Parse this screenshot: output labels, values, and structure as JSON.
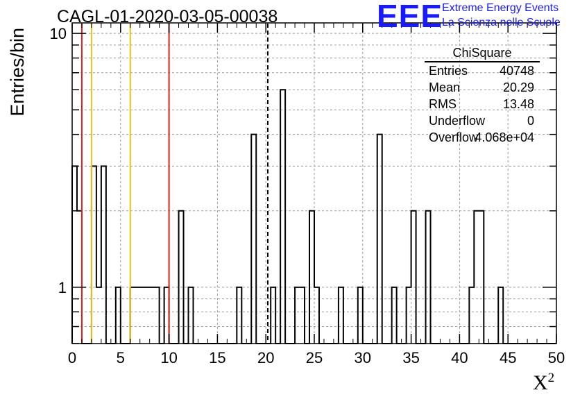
{
  "chart_data": {
    "type": "histogram",
    "title": "CAGL-01-2020-03-05-00038",
    "xlabel_base": "X",
    "xlabel_sup": "2",
    "ylabel": "Entries/bin",
    "xlim": [
      0,
      50
    ],
    "ylim_log": [
      0.6,
      11
    ],
    "y_scale": "log",
    "grid": true,
    "bin_width": 0.5,
    "x_ticks": [
      0,
      5,
      10,
      15,
      20,
      25,
      30,
      35,
      40,
      45,
      50
    ],
    "y_ticks": [
      {
        "value": 1,
        "label": "1"
      },
      {
        "value": 10,
        "label": "10"
      }
    ],
    "bins": [
      {
        "x": 0.0,
        "y": 3
      },
      {
        "x": 0.5,
        "y": 2
      },
      {
        "x": 2.0,
        "y": 3
      },
      {
        "x": 2.5,
        "y": 1
      },
      {
        "x": 3.0,
        "y": 3
      },
      {
        "x": 4.5,
        "y": 1
      },
      {
        "x": 6.0,
        "y": 1
      },
      {
        "x": 6.5,
        "y": 1
      },
      {
        "x": 7.0,
        "y": 1
      },
      {
        "x": 7.5,
        "y": 1
      },
      {
        "x": 8.0,
        "y": 1
      },
      {
        "x": 8.5,
        "y": 1
      },
      {
        "x": 9.5,
        "y": 1
      },
      {
        "x": 11.0,
        "y": 2
      },
      {
        "x": 12.0,
        "y": 1
      },
      {
        "x": 17.0,
        "y": 1
      },
      {
        "x": 18.5,
        "y": 4
      },
      {
        "x": 20.5,
        "y": 1
      },
      {
        "x": 21.5,
        "y": 6
      },
      {
        "x": 23.0,
        "y": 1
      },
      {
        "x": 23.5,
        "y": 1
      },
      {
        "x": 24.5,
        "y": 2
      },
      {
        "x": 25.0,
        "y": 1
      },
      {
        "x": 27.5,
        "y": 1
      },
      {
        "x": 29.5,
        "y": 1
      },
      {
        "x": 31.5,
        "y": 4
      },
      {
        "x": 33.0,
        "y": 1
      },
      {
        "x": 34.5,
        "y": 1
      },
      {
        "x": 35.0,
        "y": 2
      },
      {
        "x": 36.5,
        "y": 2
      },
      {
        "x": 41.0,
        "y": 1
      },
      {
        "x": 41.5,
        "y": 2
      },
      {
        "x": 42.0,
        "y": 2
      },
      {
        "x": 44.0,
        "y": 1
      }
    ],
    "vertical_lines": [
      {
        "x": 1.0,
        "color": "#e02020"
      },
      {
        "x": 2.0,
        "color": "#f0c020"
      },
      {
        "x": 6.0,
        "color": "#f0c020"
      },
      {
        "x": 10.0,
        "color": "#e02020"
      },
      {
        "x": 20.2,
        "color": "#000000",
        "dashed": true
      }
    ],
    "stats": {
      "name": "ChiSquare",
      "rows": [
        {
          "key": "Entries",
          "value": "40748"
        },
        {
          "key": "Mean",
          "value": "20.29"
        },
        {
          "key": "RMS",
          "value": "13.48"
        },
        {
          "key": "Underflow",
          "value": "0"
        },
        {
          "key": "Overflow",
          "value": "4.068e+04"
        }
      ]
    }
  },
  "logo": {
    "text": "EEE",
    "line1": "Extreme Energy Events",
    "line2": "La Scienza nelle Scuole",
    "color": "#1a1aff"
  }
}
